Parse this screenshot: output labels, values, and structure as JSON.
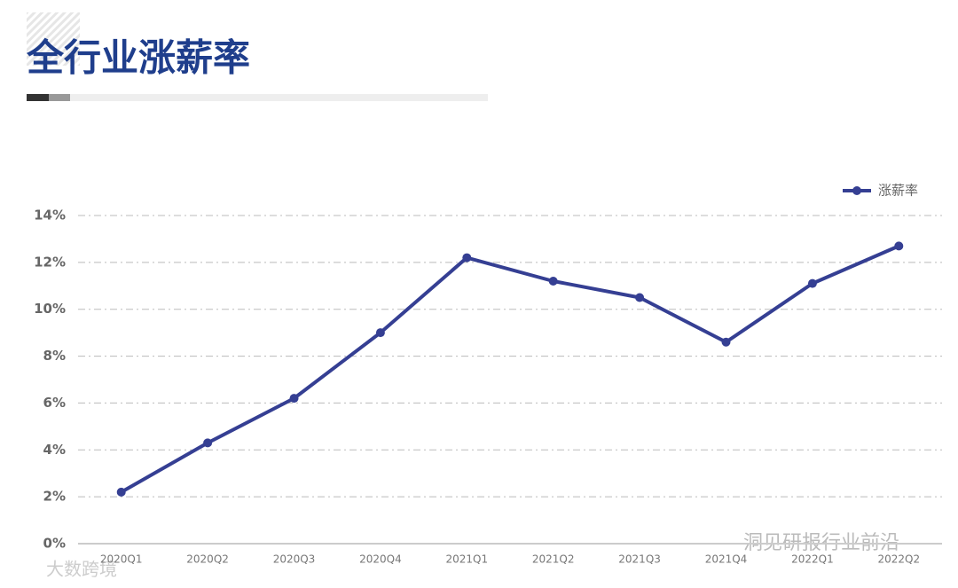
{
  "chart_data": {
    "type": "line",
    "title": "全行业涨薪率",
    "categories": [
      "2020Q1",
      "2020Q2",
      "2020Q3",
      "2020Q4",
      "2021Q1",
      "2021Q2",
      "2021Q3",
      "2021Q4",
      "2022Q1",
      "2022Q2"
    ],
    "series": [
      {
        "name": "涨薪率",
        "color": "#353f93",
        "values": [
          2.2,
          4.3,
          6.2,
          9.0,
          12.2,
          11.2,
          10.5,
          8.6,
          11.1,
          12.7
        ]
      }
    ],
    "ylim": [
      0,
      14
    ],
    "yticks": [
      {
        "value": 0,
        "label": "0%"
      },
      {
        "value": 2,
        "label": "2%"
      },
      {
        "value": 4,
        "label": "4%"
      },
      {
        "value": 6,
        "label": "6%"
      },
      {
        "value": 8,
        "label": "8%"
      },
      {
        "value": 10,
        "label": "10%"
      },
      {
        "value": 12,
        "label": "12%"
      },
      {
        "value": 14,
        "label": "14%"
      }
    ],
    "grid": true,
    "legend": "top-right",
    "watermarks": [
      "洞见研报行业前沿",
      "大数跨境"
    ]
  }
}
